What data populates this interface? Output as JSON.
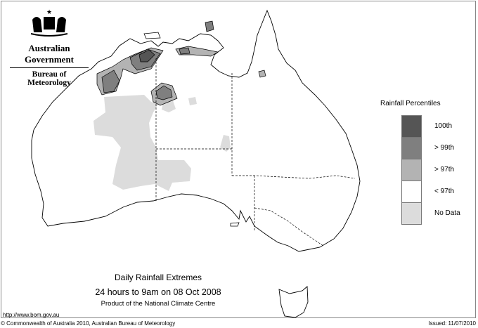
{
  "header": {
    "government": "Australian Government",
    "agency": "Bureau of Meteorology"
  },
  "legend": {
    "title": "Rainfall Percentiles",
    "items": [
      {
        "label": "100th",
        "color": "#555555"
      },
      {
        "label": "> 99th",
        "color": "#7f7f7f"
      },
      {
        "label": "> 97th",
        "color": "#b3b3b3"
      },
      {
        "label": "< 97th",
        "color": "#ffffff"
      },
      {
        "label": "No Data",
        "color": "#dcdcdc"
      }
    ]
  },
  "titles": {
    "title": "Daily Rainfall Extremes",
    "period": "24 hours to 9am on 08 Oct 2008",
    "product": "Product of the National Climate Centre"
  },
  "footer": {
    "url": "http://www.bom.gov.au",
    "copyright": "© Commonwealth of Australia 2010, Australian Bureau of Meteorology",
    "issued": "Issued: 11/07/2010"
  }
}
